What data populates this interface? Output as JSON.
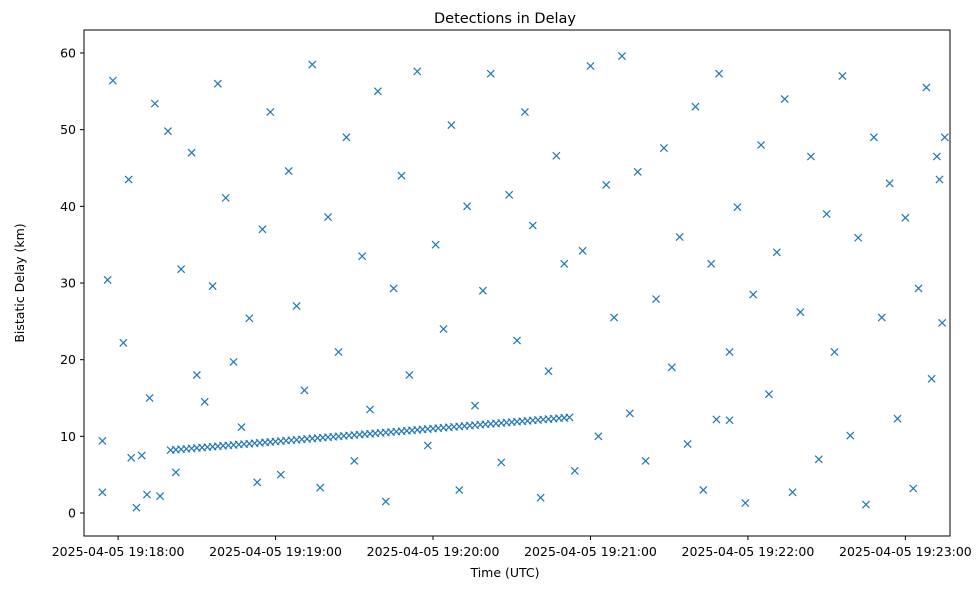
{
  "chart_data": {
    "type": "scatter",
    "title": "Detections in Delay",
    "xlabel": "Time (UTC)",
    "ylabel": "Bistatic Delay (km)",
    "marker": "x",
    "color": "#1f77b4",
    "grid": false,
    "legend": "none",
    "xlim": [
      "2025-04-05 19:17:47",
      "2025-04-05 19:23:17"
    ],
    "ylim": [
      -3,
      63
    ],
    "xticks": [
      "2025-04-05 19:18:00",
      "2025-04-05 19:19:00",
      "2025-04-05 19:20:00",
      "2025-04-05 19:21:00",
      "2025-04-05 19:22:00",
      "2025-04-05 19:23:00"
    ],
    "yticks": [
      0,
      10,
      20,
      30,
      40,
      50,
      60
    ],
    "track": {
      "start": [
        "2025-04-05 19:18:20",
        8.2
      ],
      "end": [
        "2025-04-05 19:20:53",
        12.5
      ],
      "trailing": [
        [
          "2025-04-05 19:21:48",
          12.2
        ],
        [
          "2025-04-05 19:21:53",
          12.1
        ]
      ]
    },
    "series": [
      {
        "points": [
          [
            "2025-04-05 19:17:54",
            9.4
          ],
          [
            "2025-04-05 19:17:54",
            2.7
          ],
          [
            "2025-04-05 19:17:56",
            30.4
          ],
          [
            "2025-04-05 19:17:58",
            56.4
          ],
          [
            "2025-04-05 19:18:02",
            22.2
          ],
          [
            "2025-04-05 19:18:04",
            43.5
          ],
          [
            "2025-04-05 19:18:05",
            7.2
          ],
          [
            "2025-04-05 19:18:07",
            0.7
          ],
          [
            "2025-04-05 19:18:09",
            7.5
          ],
          [
            "2025-04-05 19:18:11",
            2.4
          ],
          [
            "2025-04-05 19:18:12",
            15.0
          ],
          [
            "2025-04-05 19:18:14",
            53.4
          ],
          [
            "2025-04-05 19:18:16",
            2.2
          ],
          [
            "2025-04-05 19:18:19",
            49.8
          ],
          [
            "2025-04-05 19:18:22",
            5.3
          ],
          [
            "2025-04-05 19:18:24",
            31.8
          ],
          [
            "2025-04-05 19:18:28",
            47.0
          ],
          [
            "2025-04-05 19:18:30",
            18.0
          ],
          [
            "2025-04-05 19:18:33",
            14.5
          ],
          [
            "2025-04-05 19:18:36",
            29.6
          ],
          [
            "2025-04-05 19:18:38",
            56.0
          ],
          [
            "2025-04-05 19:18:41",
            41.1
          ],
          [
            "2025-04-05 19:18:44",
            19.7
          ],
          [
            "2025-04-05 19:18:47",
            11.2
          ],
          [
            "2025-04-05 19:18:50",
            25.4
          ],
          [
            "2025-04-05 19:18:53",
            4.0
          ],
          [
            "2025-04-05 19:18:55",
            37.0
          ],
          [
            "2025-04-05 19:18:58",
            52.3
          ],
          [
            "2025-04-05 19:19:02",
            5.0
          ],
          [
            "2025-04-05 19:19:05",
            44.6
          ],
          [
            "2025-04-05 19:19:08",
            27.0
          ],
          [
            "2025-04-05 19:19:11",
            16.0
          ],
          [
            "2025-04-05 19:19:14",
            58.5
          ],
          [
            "2025-04-05 19:19:17",
            3.3
          ],
          [
            "2025-04-05 19:19:20",
            38.6
          ],
          [
            "2025-04-05 19:19:24",
            21.0
          ],
          [
            "2025-04-05 19:19:27",
            49.0
          ],
          [
            "2025-04-05 19:19:30",
            6.8
          ],
          [
            "2025-04-05 19:19:33",
            33.5
          ],
          [
            "2025-04-05 19:19:36",
            13.5
          ],
          [
            "2025-04-05 19:19:39",
            55.0
          ],
          [
            "2025-04-05 19:19:42",
            1.5
          ],
          [
            "2025-04-05 19:19:45",
            29.3
          ],
          [
            "2025-04-05 19:19:48",
            44.0
          ],
          [
            "2025-04-05 19:19:51",
            18.0
          ],
          [
            "2025-04-05 19:19:54",
            57.6
          ],
          [
            "2025-04-05 19:19:58",
            8.8
          ],
          [
            "2025-04-05 19:20:01",
            35.0
          ],
          [
            "2025-04-05 19:20:04",
            24.0
          ],
          [
            "2025-04-05 19:20:07",
            50.6
          ],
          [
            "2025-04-05 19:20:10",
            3.0
          ],
          [
            "2025-04-05 19:20:13",
            40.0
          ],
          [
            "2025-04-05 19:20:16",
            14.0
          ],
          [
            "2025-04-05 19:20:19",
            29.0
          ],
          [
            "2025-04-05 19:20:22",
            57.3
          ],
          [
            "2025-04-05 19:20:26",
            6.6
          ],
          [
            "2025-04-05 19:20:29",
            41.5
          ],
          [
            "2025-04-05 19:20:32",
            22.5
          ],
          [
            "2025-04-05 19:20:35",
            52.3
          ],
          [
            "2025-04-05 19:20:38",
            37.5
          ],
          [
            "2025-04-05 19:20:41",
            2.0
          ],
          [
            "2025-04-05 19:20:44",
            18.5
          ],
          [
            "2025-04-05 19:20:47",
            46.6
          ],
          [
            "2025-04-05 19:20:50",
            32.5
          ],
          [
            "2025-04-05 19:20:54",
            5.5
          ],
          [
            "2025-04-05 19:20:57",
            34.2
          ],
          [
            "2025-04-05 19:21:00",
            58.3
          ],
          [
            "2025-04-05 19:21:03",
            10.0
          ],
          [
            "2025-04-05 19:21:06",
            42.8
          ],
          [
            "2025-04-05 19:21:09",
            25.5
          ],
          [
            "2025-04-05 19:21:12",
            59.6
          ],
          [
            "2025-04-05 19:21:15",
            13.0
          ],
          [
            "2025-04-05 19:21:18",
            44.5
          ],
          [
            "2025-04-05 19:21:21",
            6.8
          ],
          [
            "2025-04-05 19:21:25",
            27.9
          ],
          [
            "2025-04-05 19:21:28",
            47.6
          ],
          [
            "2025-04-05 19:21:31",
            19.0
          ],
          [
            "2025-04-05 19:21:34",
            36.0
          ],
          [
            "2025-04-05 19:21:37",
            9.0
          ],
          [
            "2025-04-05 19:21:40",
            53.0
          ],
          [
            "2025-04-05 19:21:43",
            3.0
          ],
          [
            "2025-04-05 19:21:46",
            32.5
          ],
          [
            "2025-04-05 19:21:49",
            57.3
          ],
          [
            "2025-04-05 19:21:53",
            21.0
          ],
          [
            "2025-04-05 19:21:56",
            39.9
          ],
          [
            "2025-04-05 19:21:59",
            1.3
          ],
          [
            "2025-04-05 19:22:02",
            28.5
          ],
          [
            "2025-04-05 19:22:05",
            48.0
          ],
          [
            "2025-04-05 19:22:08",
            15.5
          ],
          [
            "2025-04-05 19:22:11",
            34.0
          ],
          [
            "2025-04-05 19:22:14",
            54.0
          ],
          [
            "2025-04-05 19:22:17",
            2.7
          ],
          [
            "2025-04-05 19:22:20",
            26.2
          ],
          [
            "2025-04-05 19:22:24",
            46.5
          ],
          [
            "2025-04-05 19:22:27",
            7.0
          ],
          [
            "2025-04-05 19:22:30",
            39.0
          ],
          [
            "2025-04-05 19:22:33",
            21.0
          ],
          [
            "2025-04-05 19:22:36",
            57.0
          ],
          [
            "2025-04-05 19:22:39",
            10.1
          ],
          [
            "2025-04-05 19:22:42",
            35.9
          ],
          [
            "2025-04-05 19:22:45",
            1.1
          ],
          [
            "2025-04-05 19:22:48",
            49.0
          ],
          [
            "2025-04-05 19:22:51",
            25.5
          ],
          [
            "2025-04-05 19:22:54",
            43.0
          ],
          [
            "2025-04-05 19:22:57",
            12.3
          ],
          [
            "2025-04-05 19:23:00",
            38.5
          ],
          [
            "2025-04-05 19:23:03",
            3.2
          ],
          [
            "2025-04-05 19:23:05",
            29.3
          ],
          [
            "2025-04-05 19:23:08",
            55.5
          ],
          [
            "2025-04-05 19:23:10",
            17.5
          ],
          [
            "2025-04-05 19:23:12",
            46.5
          ],
          [
            "2025-04-05 19:23:14",
            24.8
          ],
          [
            "2025-04-05 19:23:15",
            49.0
          ],
          [
            "2025-04-05 19:23:13",
            43.5
          ]
        ]
      }
    ]
  }
}
